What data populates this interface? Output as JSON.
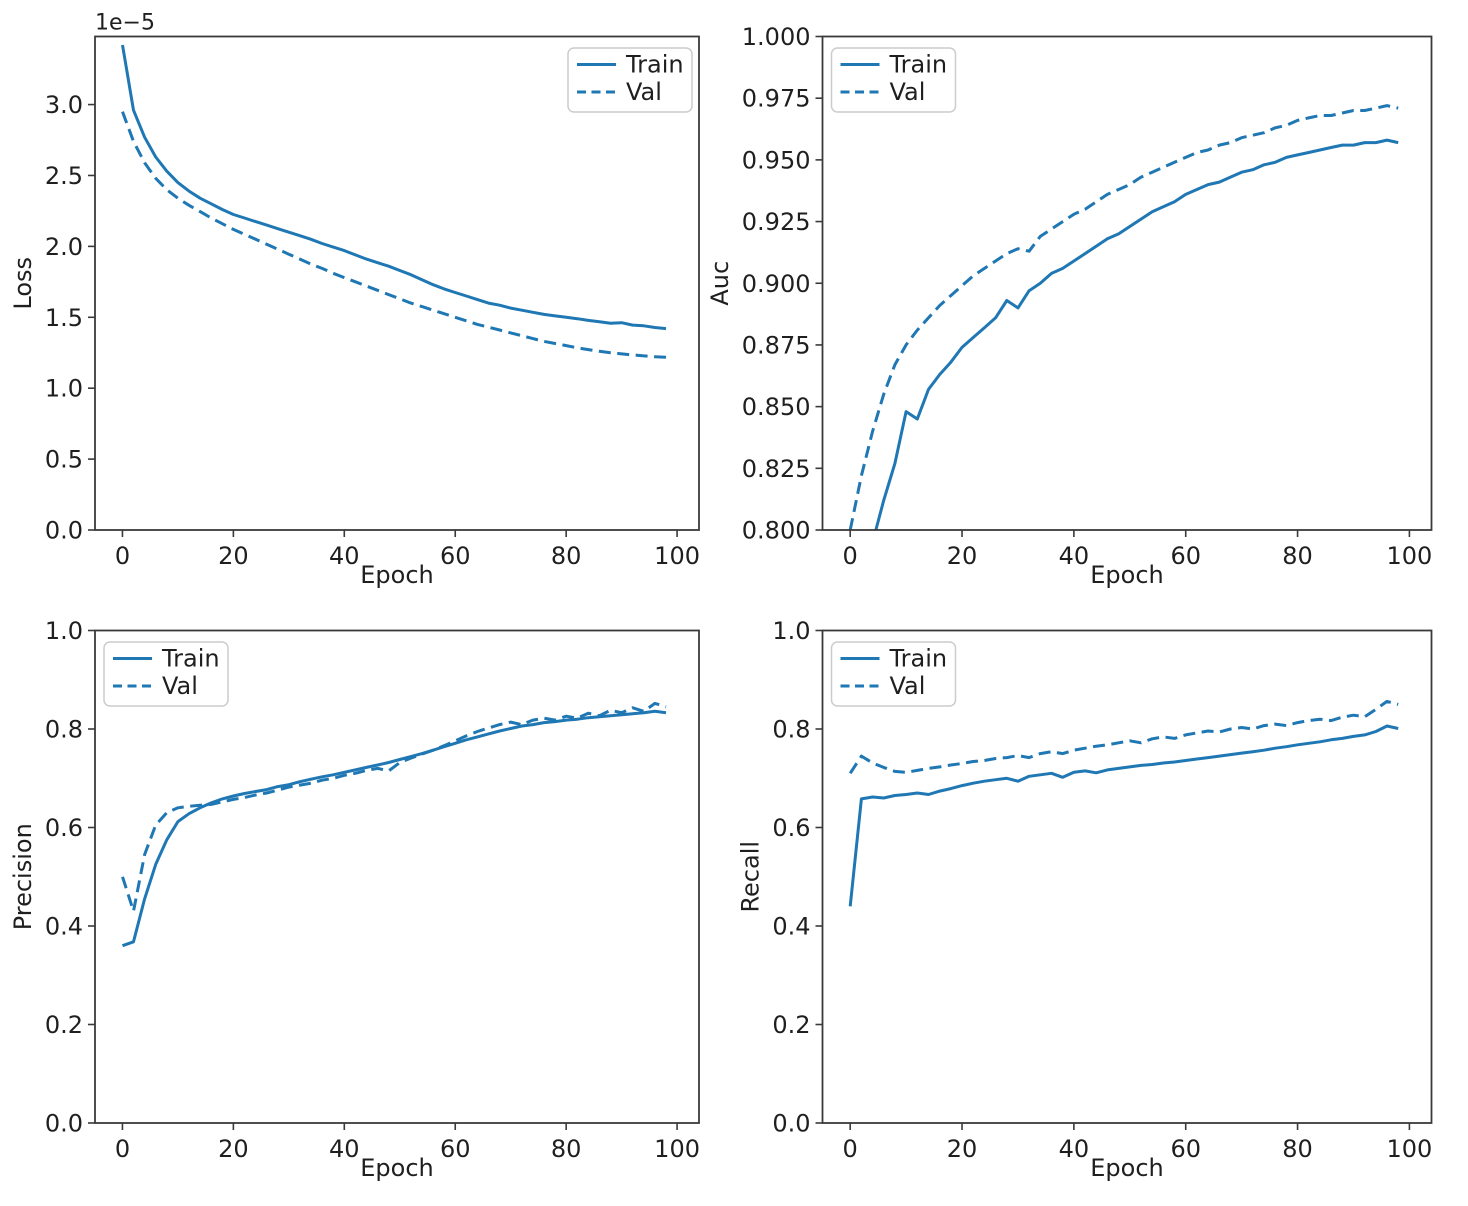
{
  "figure": {
    "background": "#ffffff",
    "line_color": "#1f77b4",
    "axis_color": "#3a3a3a",
    "text_color": "#1f1f1f",
    "legend_border_color": "#cccccc"
  },
  "chart_data": [
    {
      "id": "loss",
      "type": "line",
      "title": "",
      "xlabel": "Epoch",
      "ylabel": "Loss",
      "offset_text": "1e−5",
      "xlim": [
        -4.95,
        103.95
      ],
      "ylim": [
        0,
        3.48
      ],
      "xticks": [
        0,
        20,
        40,
        60,
        80,
        100
      ],
      "xtick_labels": [
        "0",
        "20",
        "40",
        "60",
        "80",
        "100"
      ],
      "yticks": [
        0,
        0.5,
        1.0,
        1.5,
        2.0,
        2.5,
        3.0
      ],
      "ytick_labels": [
        "0.0",
        "0.5",
        "1.0",
        "1.5",
        "2.0",
        "2.5",
        "3.0"
      ],
      "grid": false,
      "legend": {
        "loc": "upper-right",
        "entries": [
          "Train",
          "Val"
        ]
      },
      "x": [
        0,
        2,
        4,
        6,
        8,
        10,
        12,
        14,
        16,
        18,
        20,
        22,
        24,
        26,
        28,
        30,
        32,
        34,
        36,
        38,
        40,
        42,
        44,
        46,
        48,
        50,
        52,
        54,
        56,
        58,
        60,
        62,
        64,
        66,
        68,
        70,
        72,
        74,
        76,
        78,
        80,
        82,
        84,
        86,
        88,
        90,
        92,
        94,
        96,
        98
      ],
      "series": [
        {
          "name": "Train",
          "line_style": "solid",
          "values": [
            3.42,
            2.96,
            2.77,
            2.63,
            2.53,
            2.45,
            2.39,
            2.34,
            2.3,
            2.26,
            2.225,
            2.2,
            2.175,
            2.15,
            2.125,
            2.1,
            2.075,
            2.05,
            2.02,
            1.995,
            1.97,
            1.94,
            1.91,
            1.885,
            1.86,
            1.83,
            1.8,
            1.765,
            1.73,
            1.7,
            1.675,
            1.65,
            1.625,
            1.6,
            1.585,
            1.565,
            1.55,
            1.535,
            1.52,
            1.51,
            1.5,
            1.49,
            1.478,
            1.468,
            1.458,
            1.462,
            1.445,
            1.44,
            1.428,
            1.42
          ]
        },
        {
          "name": "Val",
          "line_style": "dashed",
          "values": [
            2.95,
            2.74,
            2.59,
            2.48,
            2.4,
            2.34,
            2.29,
            2.245,
            2.2,
            2.16,
            2.12,
            2.085,
            2.05,
            2.015,
            1.98,
            1.945,
            1.91,
            1.875,
            1.845,
            1.81,
            1.78,
            1.75,
            1.72,
            1.69,
            1.66,
            1.63,
            1.6,
            1.575,
            1.55,
            1.525,
            1.5,
            1.475,
            1.45,
            1.43,
            1.41,
            1.39,
            1.37,
            1.35,
            1.33,
            1.315,
            1.3,
            1.285,
            1.272,
            1.26,
            1.25,
            1.242,
            1.235,
            1.228,
            1.222,
            1.218
          ]
        }
      ]
    },
    {
      "id": "auc",
      "type": "line",
      "title": "",
      "xlabel": "Epoch",
      "ylabel": "Auc",
      "offset_text": "",
      "xlim": [
        -4.95,
        103.95
      ],
      "ylim": [
        0.8,
        1.0
      ],
      "xticks": [
        0,
        20,
        40,
        60,
        80,
        100
      ],
      "xtick_labels": [
        "0",
        "20",
        "40",
        "60",
        "80",
        "100"
      ],
      "yticks": [
        0.8,
        0.825,
        0.85,
        0.875,
        0.9,
        0.925,
        0.95,
        0.975,
        1.0
      ],
      "ytick_labels": [
        "0.800",
        "0.825",
        "0.850",
        "0.875",
        "0.900",
        "0.925",
        "0.950",
        "0.975",
        "1.000"
      ],
      "grid": false,
      "legend": {
        "loc": "upper-left",
        "entries": [
          "Train",
          "Val"
        ]
      },
      "x": [
        0,
        2,
        4,
        6,
        8,
        10,
        12,
        14,
        16,
        18,
        20,
        22,
        24,
        26,
        28,
        30,
        32,
        34,
        36,
        38,
        40,
        42,
        44,
        46,
        48,
        50,
        52,
        54,
        56,
        58,
        60,
        62,
        64,
        66,
        68,
        70,
        72,
        74,
        76,
        78,
        80,
        82,
        84,
        86,
        88,
        90,
        92,
        94,
        96,
        98
      ],
      "series": [
        {
          "name": "Train",
          "line_style": "solid",
          "values": [
            0.745,
            0.772,
            0.795,
            0.812,
            0.827,
            0.848,
            0.845,
            0.857,
            0.863,
            0.868,
            0.874,
            0.878,
            0.882,
            0.886,
            0.893,
            0.89,
            0.897,
            0.9,
            0.904,
            0.906,
            0.909,
            0.912,
            0.915,
            0.918,
            0.92,
            0.923,
            0.926,
            0.929,
            0.931,
            0.933,
            0.936,
            0.938,
            0.94,
            0.941,
            0.943,
            0.945,
            0.946,
            0.948,
            0.949,
            0.951,
            0.952,
            0.953,
            0.954,
            0.955,
            0.956,
            0.956,
            0.957,
            0.957,
            0.958,
            0.957
          ]
        },
        {
          "name": "Val",
          "line_style": "dashed",
          "values": [
            0.8,
            0.822,
            0.84,
            0.855,
            0.867,
            0.875,
            0.881,
            0.886,
            0.891,
            0.895,
            0.899,
            0.903,
            0.906,
            0.909,
            0.912,
            0.914,
            0.913,
            0.919,
            0.922,
            0.925,
            0.928,
            0.93,
            0.933,
            0.936,
            0.938,
            0.94,
            0.943,
            0.945,
            0.947,
            0.949,
            0.951,
            0.953,
            0.954,
            0.956,
            0.957,
            0.959,
            0.96,
            0.961,
            0.963,
            0.964,
            0.966,
            0.967,
            0.968,
            0.968,
            0.969,
            0.97,
            0.97,
            0.971,
            0.972,
            0.971
          ]
        }
      ]
    },
    {
      "id": "precision",
      "type": "line",
      "title": "",
      "xlabel": "Epoch",
      "ylabel": "Precision",
      "offset_text": "",
      "xlim": [
        -4.95,
        103.95
      ],
      "ylim": [
        0,
        1.0
      ],
      "xticks": [
        0,
        20,
        40,
        60,
        80,
        100
      ],
      "xtick_labels": [
        "0",
        "20",
        "40",
        "60",
        "80",
        "100"
      ],
      "yticks": [
        0,
        0.2,
        0.4,
        0.6,
        0.8,
        1.0
      ],
      "ytick_labels": [
        "0.0",
        "0.2",
        "0.4",
        "0.6",
        "0.8",
        "1.0"
      ],
      "grid": false,
      "legend": {
        "loc": "upper-left",
        "entries": [
          "Train",
          "Val"
        ]
      },
      "x": [
        0,
        2,
        4,
        6,
        8,
        10,
        12,
        14,
        16,
        18,
        20,
        22,
        24,
        26,
        28,
        30,
        32,
        34,
        36,
        38,
        40,
        42,
        44,
        46,
        48,
        50,
        52,
        54,
        56,
        58,
        60,
        62,
        64,
        66,
        68,
        70,
        72,
        74,
        76,
        78,
        80,
        82,
        84,
        86,
        88,
        90,
        92,
        94,
        96,
        98
      ],
      "series": [
        {
          "name": "Train",
          "line_style": "solid",
          "values": [
            0.36,
            0.368,
            0.455,
            0.525,
            0.575,
            0.612,
            0.628,
            0.64,
            0.65,
            0.658,
            0.664,
            0.669,
            0.673,
            0.677,
            0.683,
            0.687,
            0.693,
            0.698,
            0.703,
            0.707,
            0.712,
            0.717,
            0.722,
            0.727,
            0.732,
            0.738,
            0.744,
            0.75,
            0.757,
            0.764,
            0.771,
            0.778,
            0.784,
            0.79,
            0.796,
            0.801,
            0.806,
            0.809,
            0.813,
            0.815,
            0.818,
            0.82,
            0.823,
            0.825,
            0.827,
            0.829,
            0.831,
            0.833,
            0.836,
            0.833
          ]
        },
        {
          "name": "Val",
          "line_style": "dashed",
          "values": [
            0.5,
            0.43,
            0.545,
            0.605,
            0.63,
            0.64,
            0.643,
            0.645,
            0.647,
            0.652,
            0.657,
            0.661,
            0.666,
            0.67,
            0.676,
            0.682,
            0.686,
            0.69,
            0.696,
            0.7,
            0.706,
            0.71,
            0.716,
            0.72,
            0.715,
            0.732,
            0.741,
            0.749,
            0.757,
            0.766,
            0.776,
            0.786,
            0.795,
            0.802,
            0.809,
            0.814,
            0.809,
            0.818,
            0.822,
            0.818,
            0.826,
            0.822,
            0.832,
            0.827,
            0.838,
            0.833,
            0.843,
            0.836,
            0.852,
            0.845
          ]
        }
      ]
    },
    {
      "id": "recall",
      "type": "line",
      "title": "",
      "xlabel": "Epoch",
      "ylabel": "Recall",
      "offset_text": "",
      "xlim": [
        -4.95,
        103.95
      ],
      "ylim": [
        0,
        1.0
      ],
      "xticks": [
        0,
        20,
        40,
        60,
        80,
        100
      ],
      "xtick_labels": [
        "0",
        "20",
        "40",
        "60",
        "80",
        "100"
      ],
      "yticks": [
        0,
        0.2,
        0.4,
        0.6,
        0.8,
        1.0
      ],
      "ytick_labels": [
        "0.0",
        "0.2",
        "0.4",
        "0.6",
        "0.8",
        "1.0"
      ],
      "grid": false,
      "legend": {
        "loc": "upper-left",
        "entries": [
          "Train",
          "Val"
        ]
      },
      "x": [
        0,
        2,
        4,
        6,
        8,
        10,
        12,
        14,
        16,
        18,
        20,
        22,
        24,
        26,
        28,
        30,
        32,
        34,
        36,
        38,
        40,
        42,
        44,
        46,
        48,
        50,
        52,
        54,
        56,
        58,
        60,
        62,
        64,
        66,
        68,
        70,
        72,
        74,
        76,
        78,
        80,
        82,
        84,
        86,
        88,
        90,
        92,
        94,
        96,
        98
      ],
      "series": [
        {
          "name": "Train",
          "line_style": "solid",
          "values": [
            0.44,
            0.658,
            0.662,
            0.66,
            0.665,
            0.667,
            0.67,
            0.667,
            0.674,
            0.679,
            0.685,
            0.69,
            0.694,
            0.697,
            0.7,
            0.694,
            0.704,
            0.707,
            0.71,
            0.702,
            0.712,
            0.715,
            0.711,
            0.717,
            0.72,
            0.723,
            0.726,
            0.728,
            0.731,
            0.733,
            0.736,
            0.739,
            0.742,
            0.745,
            0.748,
            0.751,
            0.754,
            0.757,
            0.761,
            0.764,
            0.768,
            0.771,
            0.774,
            0.778,
            0.781,
            0.785,
            0.788,
            0.795,
            0.806,
            0.801
          ]
        },
        {
          "name": "Val",
          "line_style": "dashed",
          "values": [
            0.71,
            0.745,
            0.731,
            0.722,
            0.714,
            0.712,
            0.716,
            0.72,
            0.723,
            0.727,
            0.73,
            0.734,
            0.736,
            0.74,
            0.742,
            0.746,
            0.742,
            0.75,
            0.754,
            0.75,
            0.757,
            0.761,
            0.765,
            0.768,
            0.772,
            0.776,
            0.772,
            0.78,
            0.784,
            0.781,
            0.788,
            0.792,
            0.796,
            0.794,
            0.8,
            0.803,
            0.8,
            0.807,
            0.81,
            0.807,
            0.813,
            0.817,
            0.82,
            0.817,
            0.824,
            0.828,
            0.825,
            0.84,
            0.856,
            0.85
          ]
        }
      ]
    }
  ]
}
